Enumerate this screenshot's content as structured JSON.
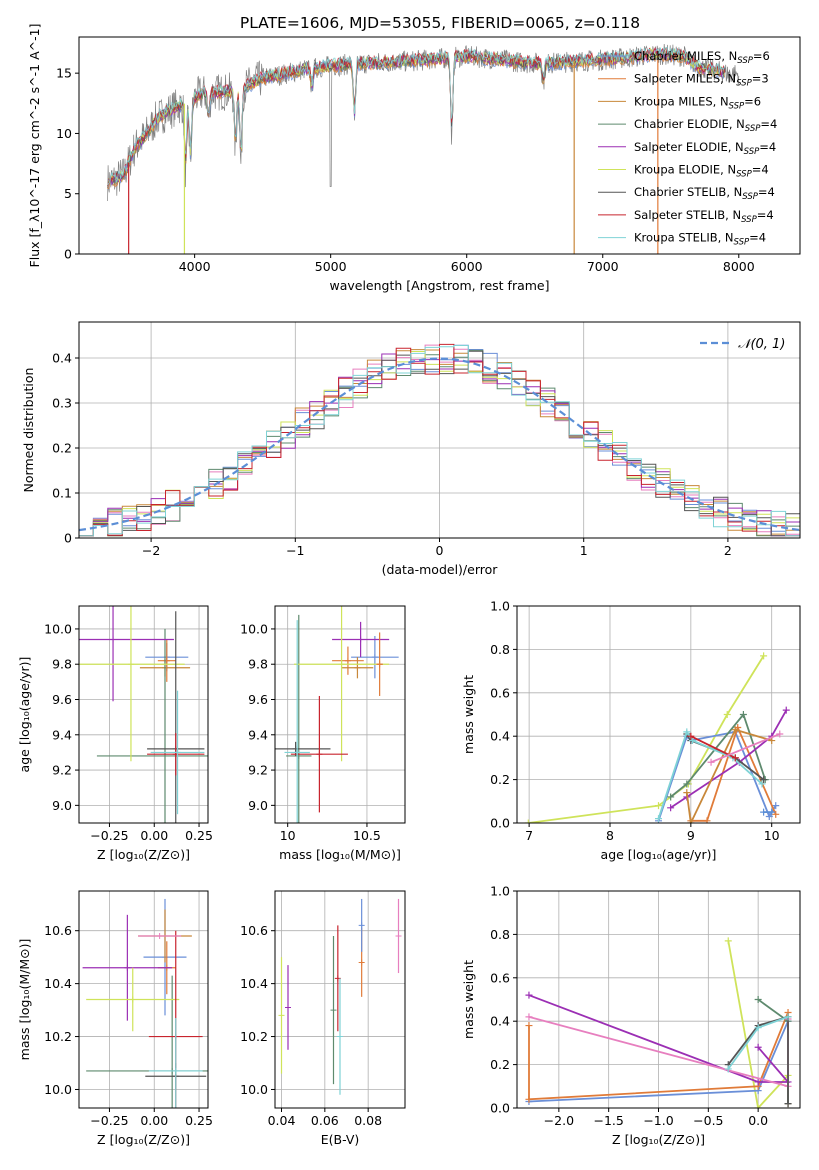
{
  "figure_title": "PLATE=1606, MJD=53055, FIBERID=0065, z=0.118",
  "colors": {
    "chabrier_miles": "#6a8fd8",
    "salpeter_miles": "#e07b39",
    "kroupa_miles": "#c8883a",
    "chabrier_elodie": "#5e8a6e",
    "salpeter_elodie": "#9b2fb4",
    "kroupa_elodie": "#cfe35a",
    "chabrier_stelib": "#555555",
    "salpeter_stelib": "#c8242e",
    "kroupa_stelib": "#7fd3d6",
    "data": "#808080",
    "normal": "#5b8ed6",
    "grid": "#b0b0b0"
  },
  "chart_data": [
    {
      "id": "spectrum",
      "type": "line",
      "title": "PLATE=1606, MJD=53055, FIBERID=0065, z=0.118",
      "xlabel": "wavelength [Angstrom, rest frame]",
      "ylabel": "Flux [f_λ10^-17 erg cm^-2 s^-1 A^-1]",
      "xlim": [
        3150,
        8450
      ],
      "ylim": [
        0,
        18
      ],
      "xticks": [
        4000,
        5000,
        6000,
        7000,
        8000
      ],
      "yticks": [
        0,
        5,
        10,
        15
      ],
      "grid": false,
      "legend_position": "top-right",
      "legend": [
        {
          "label": "Chabrier MILES, N_SSP=6",
          "color_key": "chabrier_miles"
        },
        {
          "label": "Salpeter MILES, N_SSP=3",
          "color_key": "salpeter_miles"
        },
        {
          "label": "Kroupa MILES, N_SSP=6",
          "color_key": "kroupa_miles"
        },
        {
          "label": "Chabrier ELODIE, N_SSP=4",
          "color_key": "chabrier_elodie"
        },
        {
          "label": "Salpeter ELODIE, N_SSP=4",
          "color_key": "salpeter_elodie"
        },
        {
          "label": "Kroupa ELODIE, N_SSP=4",
          "color_key": "kroupa_elodie"
        },
        {
          "label": "Chabrier STELIB, N_SSP=4",
          "color_key": "chabrier_stelib"
        },
        {
          "label": "Salpeter STELIB, N_SSP=4",
          "color_key": "salpeter_stelib"
        },
        {
          "label": "Kroupa STELIB, N_SSP=4",
          "color_key": "kroupa_stelib"
        }
      ],
      "continuum": [
        [
          3360,
          6.0
        ],
        [
          3420,
          6.2
        ],
        [
          3480,
          6.6
        ],
        [
          3560,
          8.8
        ],
        [
          3650,
          10.0
        ],
        [
          3720,
          11.2
        ],
        [
          3800,
          11.8
        ],
        [
          3870,
          12.2
        ],
        [
          3950,
          12.6
        ],
        [
          4050,
          13.3
        ],
        [
          4150,
          13.4
        ],
        [
          4300,
          13.5
        ],
        [
          4400,
          14.0
        ],
        [
          4500,
          14.6
        ],
        [
          4650,
          14.9
        ],
        [
          4800,
          15.3
        ],
        [
          5000,
          15.6
        ],
        [
          5200,
          15.8
        ],
        [
          5400,
          15.9
        ],
        [
          5600,
          16.0
        ],
        [
          5800,
          16.2
        ],
        [
          6000,
          16.4
        ],
        [
          6200,
          16.2
        ],
        [
          6400,
          15.9
        ],
        [
          6600,
          15.8
        ],
        [
          6800,
          16.0
        ],
        [
          7000,
          16.1
        ],
        [
          7200,
          16.3
        ],
        [
          7400,
          16.6
        ],
        [
          7600,
          16.4
        ],
        [
          7700,
          15.5
        ],
        [
          7800,
          15.3
        ],
        [
          7900,
          15.0
        ],
        [
          8000,
          14.9
        ]
      ],
      "absorption_features": [
        {
          "x": 3934,
          "depth": 0.45
        },
        {
          "x": 3969,
          "depth": 0.4
        },
        {
          "x": 4102,
          "depth": 0.15
        },
        {
          "x": 4300,
          "depth": 0.35
        },
        {
          "x": 4340,
          "depth": 0.45
        },
        {
          "x": 4861,
          "depth": 0.1
        },
        {
          "x": 5175,
          "depth": 0.3
        },
        {
          "x": 5890,
          "depth": 0.4
        },
        {
          "x": 6563,
          "depth": 0.1
        }
      ],
      "data_features": [
        {
          "x": 5000,
          "flux": 5.6
        }
      ],
      "model_dropouts": [
        {
          "x": 3515,
          "color_key": "salpeter_stelib"
        },
        {
          "x": 3925,
          "color_key": "kroupa_elodie"
        },
        {
          "x": 6790,
          "color_key": "kroupa_miles"
        },
        {
          "x": 7405,
          "color_key": "salpeter_miles"
        }
      ]
    },
    {
      "id": "residuals",
      "type": "bar",
      "xlabel": "(data-model)/error",
      "ylabel": "Normed distribution",
      "xlim": [
        -2.5,
        2.5
      ],
      "ylim": [
        0,
        0.48
      ],
      "xticks": [
        -2,
        -1,
        0,
        1,
        2
      ],
      "yticks": [
        0.0,
        0.1,
        0.2,
        0.3,
        0.4
      ],
      "grid": true,
      "legend_position": "top-right",
      "legend": [
        {
          "label": "𝒩(0, 1)",
          "style": "dashed",
          "color_key": "normal"
        }
      ],
      "bin_width": 0.1,
      "bin_start": -2.5,
      "bins": 50
    },
    {
      "id": "age_vs_z",
      "type": "scatter",
      "xlabel": "Z [log₁₀(Z/Z⊙)]",
      "ylabel": "age  [log₁₀(age/yr)]",
      "xlim": [
        -0.42,
        0.3
      ],
      "ylim": [
        8.9,
        10.13
      ],
      "xticks": [
        -0.25,
        0.0,
        0.25
      ],
      "xticklabels": [
        "−0.25",
        "0.00",
        "0.25"
      ],
      "yticks": [
        9.0,
        9.2,
        9.4,
        9.6,
        9.8,
        10.0
      ],
      "grid": true,
      "points": [
        {
          "color_key": "chabrier_miles",
          "x": 0.07,
          "y": 9.84,
          "xerr": 0.12,
          "yerr": 0.08
        },
        {
          "color_key": "salpeter_miles",
          "x": 0.07,
          "y": 9.82,
          "xerr": 0.05,
          "yerr": 0.12
        },
        {
          "color_key": "kroupa_miles",
          "x": 0.06,
          "y": 9.78,
          "xerr": 0.14,
          "yerr": 0.05
        },
        {
          "color_key": "chabrier_elodie",
          "x": 0.06,
          "y": 9.28,
          "xerr": 0.38,
          "yerr": 0.72
        },
        {
          "color_key": "salpeter_elodie",
          "x": -0.23,
          "y": 9.94,
          "xerr": 0.34,
          "yerr": 0.35
        },
        {
          "color_key": "kroupa_elodie",
          "x": -0.13,
          "y": 9.8,
          "xerr": 0.3,
          "yerr": 0.55
        },
        {
          "color_key": "chabrier_stelib",
          "x": 0.12,
          "y": 9.32,
          "xerr": 0.16,
          "yerr": 0.78
        },
        {
          "color_key": "salpeter_stelib",
          "x": 0.12,
          "y": 9.29,
          "xerr": 0.16,
          "yerr": 0.12
        },
        {
          "color_key": "kroupa_stelib",
          "x": 0.13,
          "y": 9.3,
          "xerr": 0.15,
          "yerr": 0.35
        }
      ]
    },
    {
      "id": "age_vs_mass",
      "type": "scatter",
      "xlabel": "mass [log₁₀(M/M⊙)]",
      "ylabel": "",
      "xlim": [
        9.92,
        10.74
      ],
      "ylim": [
        8.9,
        10.13
      ],
      "xticks": [
        10.0,
        10.5
      ],
      "yticks": [
        9.0,
        9.2,
        9.4,
        9.6,
        9.8,
        10.0
      ],
      "grid": true,
      "points": [
        {
          "color_key": "chabrier_miles",
          "x": 10.55,
          "y": 9.84,
          "xerr": 0.15,
          "yerr": 0.12
        },
        {
          "color_key": "salpeter_miles",
          "x": 10.38,
          "y": 9.82,
          "xerr": 0.1,
          "yerr": 0.08
        },
        {
          "color_key": "kroupa_miles",
          "x": 10.44,
          "y": 9.78,
          "xerr": 0.1,
          "yerr": 0.06
        },
        {
          "color_key": "chabrier_elodie",
          "x": 10.07,
          "y": 9.28,
          "xerr": 0.08,
          "yerr": 0.8
        },
        {
          "color_key": "salpeter_elodie",
          "x": 10.46,
          "y": 9.94,
          "xerr": 0.18,
          "yerr": 0.1
        },
        {
          "color_key": "kroupa_elodie",
          "x": 10.34,
          "y": 9.8,
          "xerr": 0.3,
          "yerr": 0.55
        },
        {
          "color_key": "chabrier_stelib",
          "x": 10.05,
          "y": 9.32,
          "xerr": 0.22,
          "yerr": 0.04
        },
        {
          "color_key": "salpeter_stelib",
          "x": 10.2,
          "y": 9.29,
          "xerr": 0.18,
          "yerr": 0.33
        },
        {
          "color_key": "kroupa_stelib",
          "x": 10.06,
          "y": 9.3,
          "xerr": 0.08,
          "yerr": 0.75
        },
        {
          "color_key": "salpeter_miles",
          "x": 10.58,
          "y": 9.8,
          "xerr": 0.02,
          "yerr": 0.18
        }
      ]
    },
    {
      "id": "weight_vs_age",
      "type": "line",
      "xlabel": "age  [log₁₀(age/yr)]",
      "ylabel": "mass weight",
      "xlim": [
        6.85,
        10.35
      ],
      "ylim": [
        0,
        1.0
      ],
      "xticks": [
        7,
        8,
        9,
        10
      ],
      "yticks": [
        0.0,
        0.2,
        0.4,
        0.6,
        0.8,
        1.0
      ],
      "grid": true,
      "series": [
        {
          "color_key": "kroupa_elodie",
          "x": [
            6.99,
            8.6,
            8.75,
            8.97,
            9.45,
            9.9
          ],
          "y": [
            0.0,
            0.08,
            0.12,
            0.18,
            0.5,
            0.77
          ]
        },
        {
          "color_key": "chabrier_miles",
          "x": 8.6,
          "y": 0.01,
          "series_x": [
            8.6,
            8.95,
            9.0,
            9.55,
            9.97,
            10.05
          ],
          "series_y": [
            0.01,
            0.4,
            0.38,
            0.42,
            0.03,
            0.08
          ]
        },
        {
          "color_key": "salpeter_miles",
          "x": [
            9.0,
            9.2,
            9.58,
            10.05
          ],
          "y": [
            0.01,
            0.01,
            0.44,
            0.04
          ]
        },
        {
          "color_key": "chabrier_elodie",
          "x": [
            8.75,
            8.95,
            9.65,
            9.92
          ],
          "y": [
            0.12,
            0.18,
            0.5,
            0.2
          ]
        },
        {
          "color_key": "salpeter_elodie",
          "x": [
            8.75,
            8.95,
            9.6,
            10.0,
            10.18
          ],
          "y": [
            0.07,
            0.12,
            0.28,
            0.4,
            0.52
          ]
        },
        {
          "color_key": "kroupa_miles",
          "x": [
            8.95,
            9.0,
            9.55,
            10.0
          ],
          "y": [
            0.14,
            0.0,
            0.43,
            0.38
          ]
        },
        {
          "color_key": "chabrier_stelib",
          "x": [
            8.95,
            9.0,
            9.55,
            9.9
          ],
          "y": [
            0.41,
            0.38,
            0.3,
            0.2
          ]
        },
        {
          "color_key": "kroupa_stelib",
          "x": [
            8.6,
            8.95,
            9.02,
            9.52,
            9.88
          ],
          "y": [
            0.02,
            0.42,
            0.38,
            0.3,
            0.18
          ]
        },
        {
          "color_key": "salpeter_stelib",
          "x": [
            9.0,
            9.55
          ],
          "y": [
            0.4,
            0.3
          ]
        },
        {
          "color_key": "normal",
          "x": [
            9.9,
            10.0
          ],
          "y": [
            0.05,
            0.05
          ]
        }
      ],
      "extra_series": [
        {
          "color_key": "salpeter_elodie_pink",
          "x": [
            9.25,
            10.1
          ],
          "y": [
            0.28,
            0.41
          ]
        }
      ]
    },
    {
      "id": "mass_vs_z",
      "type": "scatter",
      "xlabel": "Z [log₁₀(Z/Z⊙)]",
      "ylabel": "mass [log₁₀(M/M⊙)]",
      "xlim": [
        -0.42,
        0.3
      ],
      "ylim": [
        9.93,
        10.75
      ],
      "xticks": [
        -0.25,
        0.0,
        0.25
      ],
      "xticklabels": [
        "−0.25",
        "0.00",
        "0.25"
      ],
      "yticks": [
        10.0,
        10.2,
        10.4,
        10.6
      ],
      "grid": true,
      "points": [
        {
          "color_key": "chabrier_miles",
          "x": 0.06,
          "y": 10.5,
          "xerr": 0.12,
          "yerr": 0.22
        },
        {
          "color_key": "salpeter_miles",
          "x": 0.07,
          "y": 10.46,
          "xerr": 0.05,
          "yerr": 0.1
        },
        {
          "color_key": "kroupa_miles",
          "x": 0.06,
          "y": 10.58,
          "xerr": 0.15,
          "yerr": 0.1
        },
        {
          "color_key": "chabrier_elodie",
          "x": 0.1,
          "y": 10.07,
          "xerr": 0.48,
          "yerr": 0.36
        },
        {
          "color_key": "salpeter_elodie",
          "x": -0.15,
          "y": 10.46,
          "xerr": 0.25,
          "yerr": 0.2
        },
        {
          "color_key": "kroupa_elodie",
          "x": -0.12,
          "y": 10.34,
          "xerr": 0.26,
          "yerr": 0.12
        },
        {
          "color_key": "chabrier_stelib",
          "x": 0.12,
          "y": 10.05,
          "xerr": 0.17,
          "yerr": 0.05
        },
        {
          "color_key": "salpeter_stelib",
          "x": 0.12,
          "y": 10.2,
          "xerr": 0.15,
          "yerr": 0.4
        },
        {
          "color_key": "kroupa_stelib",
          "x": 0.12,
          "y": 10.07,
          "xerr": 0.15,
          "yerr": 0.2
        },
        {
          "color_key": "salpeter_miles_pink",
          "x": 0.03,
          "y": 10.58,
          "xerr": 0.12,
          "yerr": 0.0
        }
      ]
    },
    {
      "id": "mass_vs_ebv",
      "type": "scatter",
      "xlabel": "E(B-V)",
      "ylabel": "",
      "xlim": [
        0.037,
        0.097
      ],
      "ylim": [
        9.93,
        10.75
      ],
      "xticks": [
        0.04,
        0.06,
        0.08
      ],
      "yticks": [
        10.0,
        10.2,
        10.4,
        10.6
      ],
      "grid": true,
      "points": [
        {
          "color_key": "kroupa_elodie",
          "x": 0.04,
          "y": 10.28,
          "xerr": 0.0,
          "yerr": 0.22
        },
        {
          "color_key": "salpeter_elodie",
          "x": 0.043,
          "y": 10.31,
          "xerr": 0.0,
          "yerr": 0.16
        },
        {
          "color_key": "chabrier_elodie",
          "x": 0.064,
          "y": 10.3,
          "xerr": 0.0,
          "yerr": 0.28
        },
        {
          "color_key": "salpeter_stelib",
          "x": 0.066,
          "y": 10.42,
          "xerr": 0.0,
          "yerr": 0.2
        },
        {
          "color_key": "kroupa_stelib",
          "x": 0.067,
          "y": 10.2,
          "xerr": 0.0,
          "yerr": 0.22
        },
        {
          "color_key": "salpeter_miles",
          "x": 0.077,
          "y": 10.48,
          "xerr": 0.0,
          "yerr": 0.13
        },
        {
          "color_key": "chabrier_miles",
          "x": 0.077,
          "y": 10.62,
          "xerr": 0.0,
          "yerr": 0.1
        },
        {
          "color_key": "salpeter_miles_pink",
          "x": 0.094,
          "y": 10.58,
          "xerr": 0.0,
          "yerr": 0.14
        }
      ]
    },
    {
      "id": "weight_vs_z",
      "type": "line",
      "xlabel": "Z [log₁₀(Z/Z⊙)]",
      "ylabel": "mass weight",
      "xlim": [
        -2.42,
        0.42
      ],
      "ylim": [
        0,
        1.0
      ],
      "xticks": [
        -2.0,
        -1.5,
        -1.0,
        -0.5,
        0.0
      ],
      "xticklabels": [
        "−2.0",
        "−1.5",
        "−1.0",
        "−0.5",
        "0.0"
      ],
      "yticks": [
        0.0,
        0.2,
        0.4,
        0.6,
        0.8,
        1.0
      ],
      "grid": true,
      "series": [
        {
          "color_key": "kroupa_elodie",
          "x": [
            -0.3,
            0.0,
            0.3
          ],
          "y": [
            0.77,
            0.0,
            0.15
          ]
        },
        {
          "color_key": "chabrier_miles",
          "x": [
            -2.3,
            0.0,
            0.3
          ],
          "y": [
            0.03,
            0.08,
            0.4
          ]
        },
        {
          "color_key": "salpeter_miles",
          "x": [
            -2.3,
            -2.3,
            0.0,
            0.3,
            0.3
          ],
          "y": [
            0.38,
            0.04,
            0.1,
            0.44,
            0.02
          ]
        },
        {
          "color_key": "chabrier_elodie",
          "x": [
            0.0,
            0.3,
            0.3
          ],
          "y": [
            0.5,
            0.4,
            0.02
          ]
        },
        {
          "color_key": "salpeter_elodie",
          "x": [
            -2.3,
            0.0,
            0.3,
            0.0
          ],
          "y": [
            0.52,
            0.12,
            0.12,
            0.28
          ]
        },
        {
          "color_key": "salpeter_miles_pink",
          "x": [
            -2.3,
            0.3,
            0.3
          ],
          "y": [
            0.42,
            0.1,
            0.41
          ]
        },
        {
          "color_key": "chabrier_stelib",
          "x": [
            -0.3,
            0.0,
            0.3,
            0.3
          ],
          "y": [
            0.2,
            0.38,
            0.42,
            0.02
          ]
        },
        {
          "color_key": "kroupa_stelib",
          "x": [
            -0.3,
            0.0,
            0.3
          ],
          "y": [
            0.18,
            0.37,
            0.42
          ]
        }
      ]
    }
  ]
}
